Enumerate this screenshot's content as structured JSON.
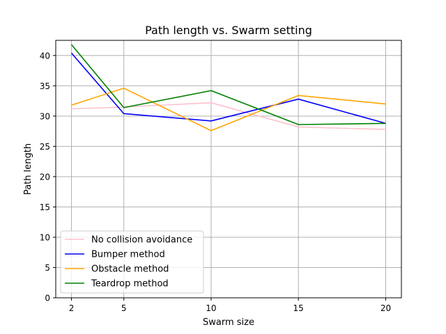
{
  "chart_data": {
    "type": "line",
    "title": "Path length vs. Swarm setting",
    "xlabel": "Swarm size",
    "ylabel": "Path length",
    "x": [
      2,
      5,
      10,
      15,
      20
    ],
    "xticks": [
      "2",
      "5",
      "10",
      "15",
      "20"
    ],
    "yticks": [
      "0",
      "5",
      "10",
      "15",
      "20",
      "25",
      "30",
      "35",
      "40"
    ],
    "xlim": [
      1.1,
      20.9
    ],
    "ylim": [
      0,
      42.5
    ],
    "grid": true,
    "legend_position": "lower-left",
    "series": [
      {
        "name": "No collision avoidance",
        "color": "#ffc0cb",
        "values": [
          31.2,
          31.5,
          32.2,
          28.2,
          27.8
        ]
      },
      {
        "name": "Bumper method",
        "color": "#0000ff",
        "values": [
          40.4,
          30.4,
          29.2,
          32.8,
          28.8
        ]
      },
      {
        "name": "Obstacle method",
        "color": "#ffa500",
        "values": [
          31.8,
          34.6,
          27.6,
          33.4,
          32.0
        ]
      },
      {
        "name": "Teardrop method",
        "color": "#008000",
        "values": [
          41.8,
          31.4,
          34.2,
          28.6,
          28.8
        ]
      }
    ]
  }
}
